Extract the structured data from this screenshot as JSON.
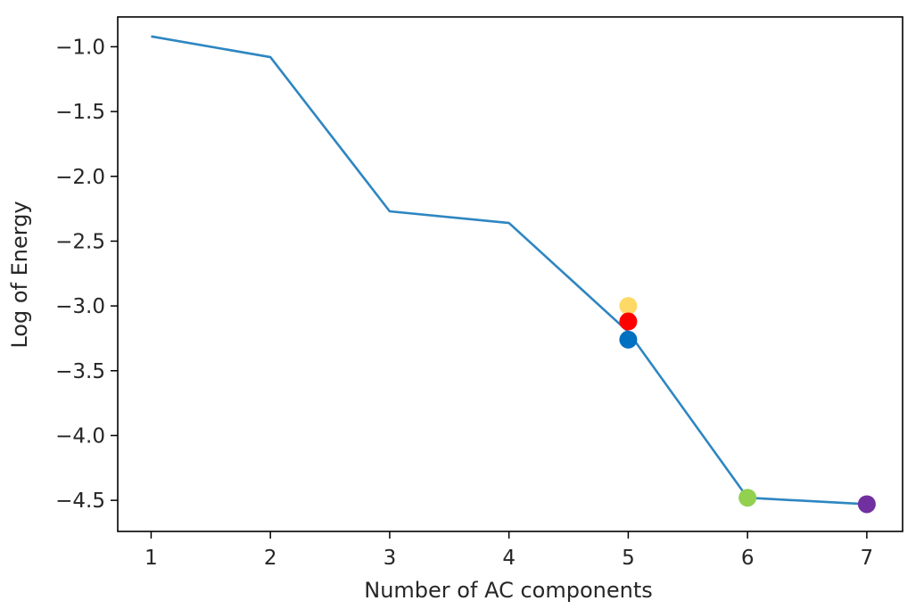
{
  "chart_data": {
    "type": "line",
    "title": "",
    "xlabel": "Number of AC components",
    "ylabel": "Log of Energy",
    "xlim": [
      0.72,
      7.3
    ],
    "ylim": [
      -4.74,
      -0.77
    ],
    "xticks": [
      1,
      2,
      3,
      4,
      5,
      6,
      7
    ],
    "yticks": [
      -1.0,
      -1.5,
      -2.0,
      -2.5,
      -3.0,
      -3.5,
      -4.0,
      -4.5
    ],
    "xtick_labels": [
      "1",
      "2",
      "3",
      "4",
      "5",
      "6",
      "7"
    ],
    "ytick_labels": [
      "−1.0",
      "−1.5",
      "−2.0",
      "−2.5",
      "−3.0",
      "−3.5",
      "−4.0",
      "−4.5"
    ],
    "grid": false,
    "series": [
      {
        "x": [
          1,
          2,
          3,
          4,
          5,
          6,
          7
        ],
        "y": [
          -0.92,
          -1.08,
          -2.27,
          -2.36,
          -3.2,
          -4.48,
          -4.53
        ],
        "color": "#2e86c1"
      }
    ],
    "markers": [
      {
        "x": 5,
        "y": -3.0,
        "color": "#ffd966"
      },
      {
        "x": 5,
        "y": -3.12,
        "color": "#ff0000"
      },
      {
        "x": 5,
        "y": -3.26,
        "color": "#0070c0"
      },
      {
        "x": 6,
        "y": -4.48,
        "color": "#92d050"
      },
      {
        "x": 7,
        "y": -4.53,
        "color": "#7030a0"
      }
    ]
  }
}
